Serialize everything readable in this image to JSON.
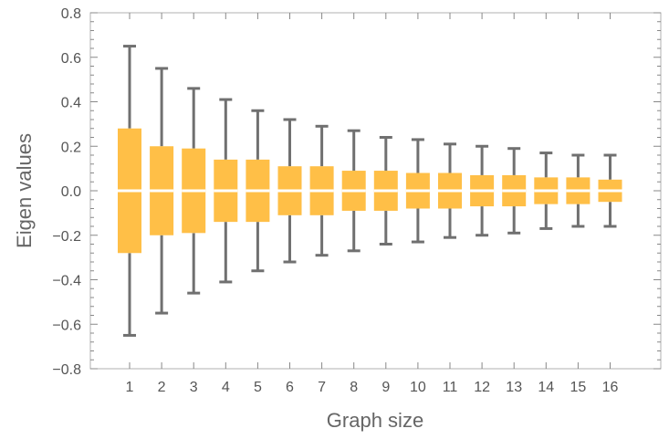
{
  "chart_data": {
    "type": "box",
    "xlabel": "Graph size",
    "ylabel": "Eigen values",
    "ylim": [
      -0.8,
      0.8
    ],
    "yticks": [
      -0.8,
      -0.6,
      -0.4,
      -0.2,
      0.0,
      0.2,
      0.4,
      0.6,
      0.8
    ],
    "ytick_labels": [
      "−0.8",
      "−0.6",
      "−0.4",
      "−0.2",
      "0.0",
      "0.2",
      "0.4",
      "0.6",
      "0.8"
    ],
    "categories": [
      "1",
      "2",
      "3",
      "4",
      "5",
      "6",
      "7",
      "8",
      "9",
      "10",
      "11",
      "12",
      "13",
      "14",
      "15",
      "16"
    ],
    "whisker_high": [
      0.65,
      0.55,
      0.46,
      0.41,
      0.36,
      0.32,
      0.29,
      0.27,
      0.24,
      0.23,
      0.21,
      0.2,
      0.19,
      0.17,
      0.16,
      0.16
    ],
    "whisker_low": [
      -0.65,
      -0.55,
      -0.46,
      -0.41,
      -0.36,
      -0.32,
      -0.29,
      -0.27,
      -0.24,
      -0.23,
      -0.21,
      -0.2,
      -0.19,
      -0.17,
      -0.16,
      -0.16
    ],
    "box_high": [
      0.28,
      0.2,
      0.19,
      0.14,
      0.14,
      0.11,
      0.11,
      0.09,
      0.09,
      0.08,
      0.08,
      0.07,
      0.07,
      0.06,
      0.06,
      0.05
    ],
    "box_low": [
      -0.28,
      -0.2,
      -0.19,
      -0.14,
      -0.14,
      -0.11,
      -0.11,
      -0.09,
      -0.09,
      -0.08,
      -0.08,
      -0.07,
      -0.07,
      -0.06,
      -0.06,
      -0.05
    ],
    "median": [
      0,
      0,
      0,
      0,
      0,
      0,
      0,
      0,
      0,
      0,
      0,
      0,
      0,
      0,
      0,
      0
    ],
    "grid": false,
    "colors": {
      "box": "#FFBF47",
      "whisker": "#707070",
      "median": "#ffffff",
      "frame": "#b0b0b0"
    }
  }
}
